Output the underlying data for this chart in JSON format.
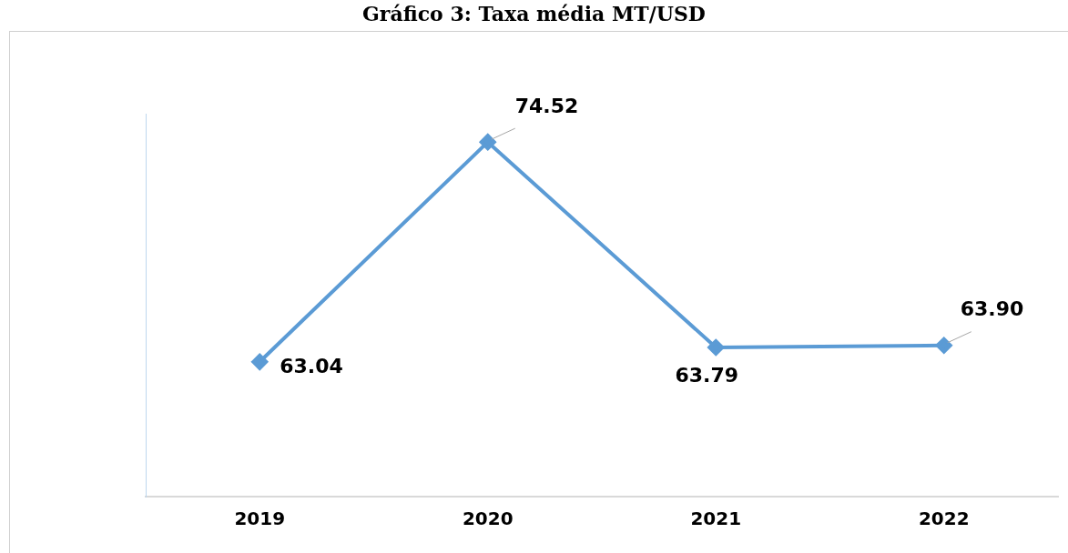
{
  "chart_data": {
    "type": "line",
    "title": "Gráfico 3: Taxa média MT/USD",
    "categories": [
      "2019",
      "2020",
      "2021",
      "2022"
    ],
    "series": [
      {
        "color": "#5b9bd5",
        "values": [
          63.04,
          74.52,
          63.79,
          63.9
        ],
        "value_labels": [
          "63.04",
          "74.52",
          "63.79",
          "63.90"
        ]
      }
    ],
    "ylim": [
      56,
      76
    ],
    "relative": false,
    "marker": "diamond",
    "grid": false,
    "legend": false
  }
}
